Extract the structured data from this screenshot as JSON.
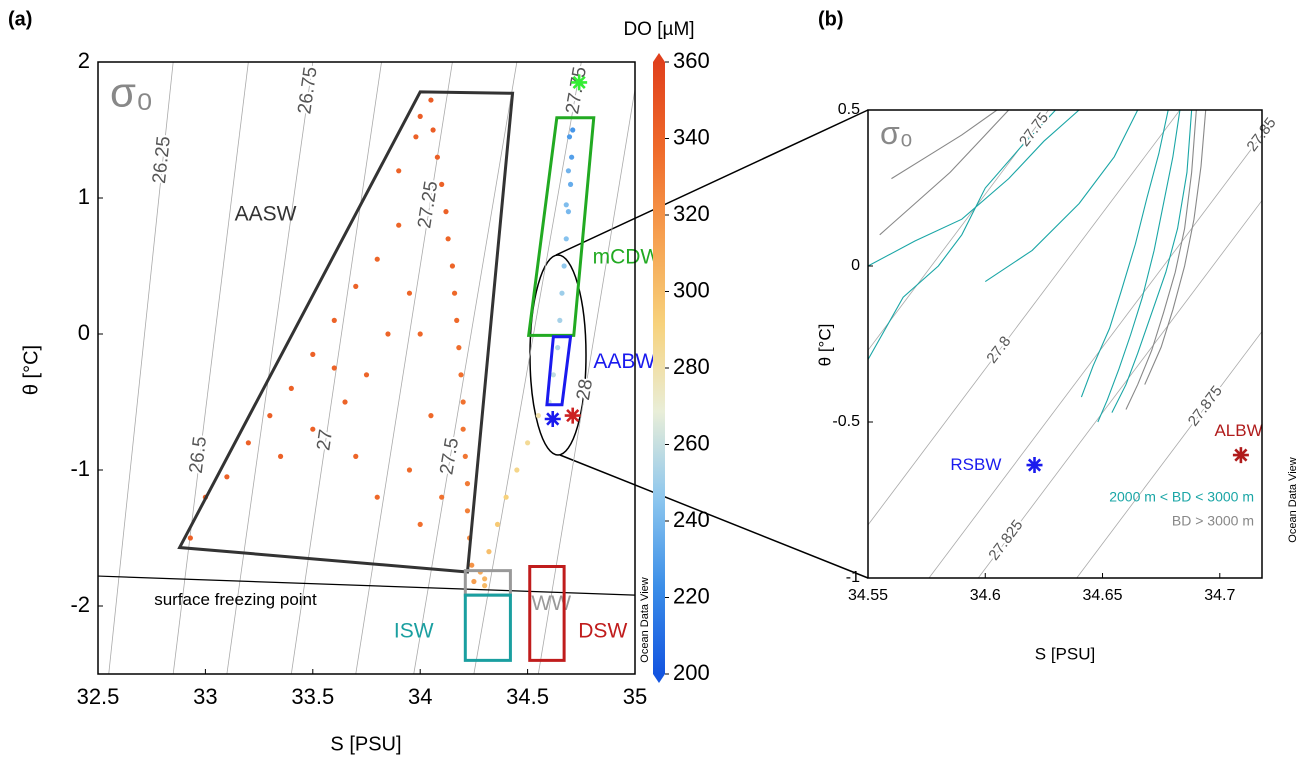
{
  "chart_data": [
    {
      "type": "scatter",
      "panel_label": "(a)",
      "x_label": "S [PSU]",
      "y_label": "θ [°C]",
      "sigma_label": "σ₀",
      "watermark": "Ocean Data View",
      "xlim": [
        32.5,
        35
      ],
      "xticks": [
        32.5,
        33,
        33.5,
        34,
        34.5,
        35
      ],
      "ylim": [
        -2.5,
        2
      ],
      "yticks": [
        -2,
        -1,
        0,
        1,
        2
      ],
      "colorbar": {
        "label": "DO [µM]",
        "lim": [
          200,
          360
        ],
        "ticks": [
          200,
          220,
          240,
          260,
          280,
          300,
          320,
          340,
          360
        ],
        "colors": [
          "#1455e0",
          "#3b8ee8",
          "#8cc6ee",
          "#e9eed8",
          "#f7d27c",
          "#f6a050",
          "#ef6a2a",
          "#e0401c"
        ]
      },
      "points": {
        "x": [
          34.05,
          34.06,
          34.08,
          34.1,
          34.12,
          34.13,
          34.15,
          34.16,
          34.17,
          34.18,
          34.19,
          34.2,
          34.2,
          34.21,
          34.22,
          34.22,
          34.23,
          34.24,
          32.93,
          33.0,
          33.1,
          33.2,
          33.3,
          33.4,
          33.5,
          33.6,
          33.7,
          33.8,
          33.9,
          33.95,
          33.85,
          33.75,
          33.65,
          33.5,
          33.35,
          33.8,
          33.95,
          34.0,
          33.9,
          33.98,
          34.0,
          33.7,
          33.6,
          34.05,
          34.1,
          34.0,
          34.3,
          34.28,
          34.32,
          34.36,
          34.4,
          34.45,
          34.5,
          34.55,
          34.3,
          34.25,
          34.6,
          34.62,
          34.64,
          34.65,
          34.66,
          34.67,
          34.68,
          34.69,
          34.7,
          34.705,
          34.71,
          34.69,
          34.68,
          34.695
        ],
        "y": [
          1.72,
          1.5,
          1.3,
          1.1,
          0.9,
          0.7,
          0.5,
          0.3,
          0.1,
          -0.1,
          -0.3,
          -0.5,
          -0.7,
          -0.9,
          -1.1,
          -1.3,
          -1.5,
          -1.7,
          -1.5,
          -1.2,
          -1.05,
          -0.8,
          -0.6,
          -0.4,
          -0.15,
          0.1,
          0.35,
          0.55,
          0.8,
          0.3,
          0.0,
          -0.3,
          -0.5,
          -0.7,
          -0.9,
          -1.2,
          -1.0,
          -1.4,
          1.2,
          1.45,
          1.6,
          -0.9,
          -0.25,
          -0.6,
          -1.2,
          0.0,
          -1.8,
          -1.75,
          -1.6,
          -1.4,
          -1.2,
          -1.0,
          -0.8,
          -0.6,
          -1.85,
          -1.82,
          -0.5,
          -0.3,
          -0.1,
          0.1,
          0.3,
          0.5,
          0.7,
          0.9,
          1.1,
          1.3,
          1.5,
          1.2,
          0.95,
          1.45
        ],
        "c": [
          345,
          344,
          343,
          342,
          342,
          340,
          340,
          338,
          338,
          336,
          335,
          334,
          333,
          332,
          330,
          328,
          325,
          320,
          342,
          342,
          342,
          342,
          343,
          342,
          342,
          341,
          341,
          340,
          340,
          340,
          340,
          340,
          341,
          342,
          342,
          338,
          337,
          335,
          341,
          342,
          344,
          340,
          341,
          338,
          334,
          339,
          305,
          310,
          300,
          295,
          292,
          288,
          285,
          280,
          302,
          315,
          262,
          258,
          255,
          252,
          250,
          247,
          244,
          240,
          235,
          230,
          226,
          238,
          242,
          228
        ]
      },
      "markers": [
        {
          "x": 34.74,
          "y": 1.85,
          "color": "#33ee33"
        },
        {
          "x": 34.617,
          "y": -0.625,
          "color": "#1a1aee"
        },
        {
          "x": 34.71,
          "y": -0.6,
          "color": "#cc2222"
        }
      ],
      "isopycnals": [
        {
          "label": "26.25",
          "x": [
            32.55,
            32.85
          ],
          "y": [
            -2.5,
            2
          ],
          "label_at": [
            32.8,
            1.28
          ]
        },
        {
          "label": "26.5",
          "x": [
            32.85,
            33.2
          ],
          "y": [
            -2.5,
            2
          ],
          "label_at": [
            32.97,
            -0.89
          ]
        },
        {
          "label": "26.75",
          "x": [
            33.1,
            33.5
          ],
          "y": [
            -2.5,
            2
          ],
          "label_at": [
            33.48,
            1.79
          ]
        },
        {
          "label": "27",
          "x": [
            33.4,
            33.82
          ],
          "y": [
            -2.5,
            2
          ],
          "label_at": [
            33.56,
            -0.78
          ]
        },
        {
          "label": "27.25",
          "x": [
            33.7,
            34.15
          ],
          "y": [
            -2.5,
            2
          ],
          "label_at": [
            34.04,
            0.95
          ]
        },
        {
          "label": "27.5",
          "x": [
            33.97,
            34.45
          ],
          "y": [
            -2.5,
            2
          ],
          "label_at": [
            34.14,
            -0.9
          ]
        },
        {
          "label": "27.75",
          "x": [
            34.25,
            34.75
          ],
          "y": [
            -2.5,
            2
          ],
          "label_at": [
            34.73,
            1.79
          ]
        },
        {
          "label": "28",
          "x": [
            34.55,
            35.0
          ],
          "y": [
            -2.5,
            1.8
          ],
          "label_at": [
            34.77,
            -0.41
          ]
        }
      ],
      "regions": [
        {
          "label": "AASW",
          "color": "#333333",
          "x": [
            34.0,
            34.43,
            34.22,
            32.88
          ],
          "y": [
            1.78,
            1.77,
            -1.75,
            -1.57
          ],
          "label_at": [
            33.28,
            0.875
          ]
        },
        {
          "label": "mCDW",
          "color": "#22aa22",
          "x": [
            34.636,
            34.808,
            34.715,
            34.505
          ],
          "y": [
            1.59,
            1.59,
            -0.01,
            -0.01
          ],
          "label_at": [
            34.96,
            0.56
          ]
        },
        {
          "label": "AABW",
          "color": "#1a1aee",
          "x": [
            34.62,
            34.7,
            34.66,
            34.59
          ],
          "y": [
            -0.02,
            -0.02,
            -0.52,
            -0.52
          ],
          "label_at": [
            34.95,
            -0.21
          ]
        },
        {
          "label": "WW",
          "color": "#999999",
          "x": [
            34.21,
            34.42,
            34.42,
            34.21
          ],
          "y": [
            -1.74,
            -1.74,
            -1.92,
            -1.92
          ],
          "label_at": [
            34.61,
            -1.99
          ]
        },
        {
          "label": "ISW",
          "color": "#1a9fa0",
          "x": [
            34.21,
            34.42,
            34.42,
            34.21
          ],
          "y": [
            -1.92,
            -1.92,
            -2.4,
            -2.4
          ],
          "label_at": [
            33.97,
            -2.19
          ]
        },
        {
          "label": "DSW",
          "color": "#c01c1c",
          "x": [
            34.51,
            34.67,
            34.67,
            34.51
          ],
          "y": [
            -1.71,
            -1.71,
            -2.4,
            -2.4
          ],
          "label_at": [
            34.85,
            -2.19
          ]
        }
      ],
      "freezing_line": {
        "label": "surface freezing point",
        "x": [
          32.5,
          35
        ],
        "y": [
          -1.78,
          -1.92
        ],
        "label_at": [
          33.14,
          -1.96
        ]
      }
    },
    {
      "type": "line",
      "panel_label": "(b)",
      "x_label": "S [PSU]",
      "y_label": "θ [°C]",
      "sigma_label": "σ₀",
      "watermark": "Ocean Data View",
      "xlim": [
        34.55,
        34.718
      ],
      "xticks": [
        34.55,
        34.6,
        34.65,
        34.7
      ],
      "ylim": [
        -1,
        0.5
      ],
      "yticks": [
        -1,
        -0.5,
        0,
        0.5
      ],
      "legend": "lower right",
      "isopycnals": [
        {
          "label": "27.75",
          "x": [
            34.477,
            34.627
          ],
          "y": [
            -1,
            0.5
          ],
          "label_at": [
            34.621,
            0.436
          ]
        },
        {
          "label": "27.8",
          "x": [
            34.533,
            34.683
          ],
          "y": [
            -1,
            0.5
          ],
          "label_at": [
            34.606,
            -0.27
          ]
        },
        {
          "label": "27.825",
          "x": [
            34.597,
            34.747
          ],
          "y": [
            -1,
            0.5
          ],
          "label_at": [
            34.609,
            -0.88
          ]
        },
        {
          "label": "27.85",
          "x": [
            34.576,
            34.726
          ],
          "y": [
            -1,
            0.5
          ],
          "label_at": [
            34.718,
            0.42
          ]
        },
        {
          "label": "27.875",
          "x": [
            34.639,
            34.789
          ],
          "y": [
            -1,
            0.5
          ],
          "label_at": [
            34.694,
            -0.45
          ]
        }
      ],
      "series": [
        {
          "name": "2000 m < BD < 3000 m",
          "color": "#1aa6a6",
          "traces": [
            {
              "x": [
                34.55,
                34.565,
                34.58,
                34.59,
                34.6,
                34.615,
                34.63
              ],
              "y": [
                -0.3,
                -0.1,
                0.0,
                0.1,
                0.25,
                0.38,
                0.5
              ]
            },
            {
              "x": [
                34.55,
                34.57,
                34.59,
                34.61,
                34.625,
                34.64
              ],
              "y": [
                0.0,
                0.08,
                0.15,
                0.28,
                0.4,
                0.5
              ]
            },
            {
              "x": [
                34.6,
                34.62,
                34.64,
                34.655,
                34.665
              ],
              "y": [
                -0.05,
                0.05,
                0.2,
                0.35,
                0.5
              ]
            },
            {
              "x": [
                34.683,
                34.68,
                34.676,
                34.672,
                34.667,
                34.662,
                34.657,
                34.652,
                34.648
              ],
              "y": [
                0.5,
                0.35,
                0.2,
                0.05,
                -0.1,
                -0.22,
                -0.33,
                -0.43,
                -0.5
              ]
            },
            {
              "x": [
                34.688,
                34.686,
                34.682,
                34.677,
                34.671,
                34.665,
                34.66,
                34.654
              ],
              "y": [
                0.5,
                0.3,
                0.12,
                -0.02,
                -0.15,
                -0.28,
                -0.38,
                -0.47
              ]
            },
            {
              "x": [
                34.678,
                34.674,
                34.669,
                34.664,
                34.658,
                34.653,
                34.646,
                34.641
              ],
              "y": [
                0.5,
                0.36,
                0.22,
                0.07,
                -0.08,
                -0.2,
                -0.32,
                -0.42
              ]
            }
          ]
        },
        {
          "name": "BD > 3000 m",
          "color": "#888888",
          "traces": [
            {
              "x": [
                34.69,
                34.688,
                34.685,
                34.681,
                34.676,
                34.671,
                34.665,
                34.66
              ],
              "y": [
                0.5,
                0.3,
                0.12,
                -0.02,
                -0.15,
                -0.27,
                -0.38,
                -0.46
              ]
            },
            {
              "x": [
                34.694,
                34.692,
                34.689,
                34.685,
                34.68,
                34.675,
                34.668
              ],
              "y": [
                0.5,
                0.32,
                0.15,
                0.0,
                -0.14,
                -0.26,
                -0.38
              ]
            },
            {
              "x": [
                34.555,
                34.57,
                34.585,
                34.6,
                34.61
              ],
              "y": [
                0.1,
                0.2,
                0.3,
                0.42,
                0.5
              ]
            },
            {
              "x": [
                34.56,
                34.575,
                34.59,
                34.605
              ],
              "y": [
                0.28,
                0.35,
                0.42,
                0.5
              ]
            }
          ]
        }
      ],
      "markers": [
        {
          "name": "RSBW",
          "x": 34.621,
          "y": -0.638,
          "color": "#1a1aee",
          "label_at": [
            34.596,
            -0.64
          ]
        },
        {
          "name": "ALBW",
          "x": 34.709,
          "y": -0.606,
          "color": "#b01c1c",
          "label_at": [
            34.708,
            -0.53
          ]
        }
      ]
    }
  ]
}
